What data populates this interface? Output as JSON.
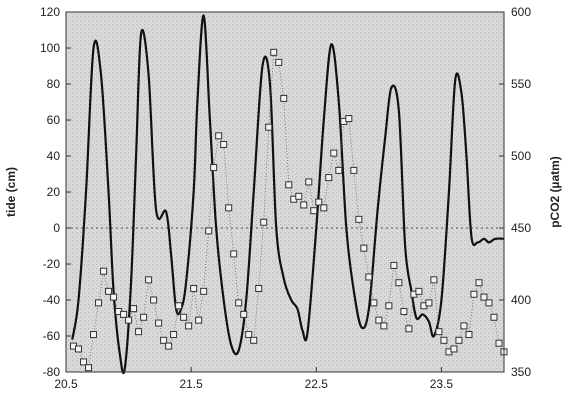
{
  "chart_data": {
    "type": "line",
    "title": "",
    "xlabel": "",
    "ylabel": "tide (cm)",
    "y2label": "pCO2 (µatm)",
    "xlim": [
      20.5,
      24.0
    ],
    "ylim": [
      -80,
      120
    ],
    "y2lim": [
      350,
      600
    ],
    "xticks": [
      20.5,
      21.5,
      22.5,
      23.5
    ],
    "yticks": [
      -80,
      -60,
      -40,
      -20,
      0,
      20,
      40,
      60,
      80,
      100,
      120
    ],
    "y2ticks": [
      350,
      400,
      450,
      500,
      550,
      600
    ],
    "grid": false,
    "zero_line": true,
    "series": [
      {
        "axis": "left",
        "style": "solid-line",
        "x": [
          20.55,
          20.6,
          20.66,
          20.72,
          20.78,
          20.84,
          20.88,
          20.93,
          20.97,
          21.02,
          21.06,
          21.1,
          21.16,
          21.22,
          21.3,
          21.34,
          21.38,
          21.42,
          21.46,
          21.52,
          21.55,
          21.6,
          21.65,
          21.7,
          21.76,
          21.82,
          21.88,
          21.94,
          22.0,
          22.07,
          22.13,
          22.18,
          22.24,
          22.3,
          22.35,
          22.39,
          22.43,
          22.5,
          22.56,
          22.62,
          22.68,
          22.74,
          22.8,
          22.86,
          22.92,
          22.99,
          23.05,
          23.1,
          23.16,
          23.21,
          23.26,
          23.3,
          23.35,
          23.4,
          23.44,
          23.5,
          23.56,
          23.61,
          23.66,
          23.7,
          23.74,
          23.79,
          23.84,
          23.88,
          23.93,
          24.0
        ],
        "values": [
          -62,
          -40,
          20,
          100,
          85,
          20,
          -35,
          -70,
          -78,
          -30,
          40,
          108,
          85,
          10,
          9,
          -15,
          -45,
          -45,
          -30,
          20,
          70,
          118,
          60,
          0,
          -40,
          -65,
          -68,
          -40,
          20,
          90,
          80,
          0,
          -28,
          -40,
          -45,
          -57,
          -58,
          0,
          60,
          102,
          70,
          0,
          -35,
          -55,
          -45,
          10,
          50,
          78,
          65,
          -10,
          -35,
          -50,
          -48,
          -52,
          -60,
          -40,
          20,
          82,
          75,
          40,
          -5,
          -8,
          -6,
          -8,
          -6,
          -6
        ]
      },
      {
        "axis": "right",
        "style": "open-squares-dotted",
        "x": [
          20.56,
          20.6,
          20.64,
          20.68,
          20.72,
          20.76,
          20.8,
          20.84,
          20.88,
          20.92,
          20.96,
          21.0,
          21.04,
          21.08,
          21.12,
          21.16,
          21.2,
          21.24,
          21.28,
          21.32,
          21.36,
          21.4,
          21.44,
          21.48,
          21.52,
          21.56,
          21.6,
          21.64,
          21.68,
          21.72,
          21.76,
          21.8,
          21.84,
          21.88,
          21.92,
          21.96,
          22.0,
          22.04,
          22.08,
          22.12,
          22.16,
          22.2,
          22.24,
          22.28,
          22.32,
          22.36,
          22.4,
          22.44,
          22.48,
          22.52,
          22.56,
          22.6,
          22.64,
          22.68,
          22.72,
          22.76,
          22.8,
          22.84,
          22.88,
          22.92,
          22.96,
          23.0,
          23.04,
          23.08,
          23.12,
          23.16,
          23.2,
          23.24,
          23.28,
          23.32,
          23.36,
          23.4,
          23.44,
          23.48,
          23.52,
          23.56,
          23.6,
          23.64,
          23.68,
          23.72,
          23.76,
          23.8,
          23.84,
          23.88,
          23.92,
          23.96,
          24.0
        ],
        "values": [
          368,
          366,
          357,
          353,
          376,
          398,
          420,
          406,
          402,
          392,
          390,
          386,
          394,
          378,
          388,
          414,
          400,
          384,
          372,
          368,
          376,
          396,
          388,
          382,
          408,
          386,
          406,
          448,
          492,
          514,
          508,
          464,
          432,
          398,
          390,
          376,
          372,
          408,
          454,
          520,
          572,
          565,
          540,
          480,
          470,
          472,
          466,
          482,
          462,
          468,
          464,
          485,
          502,
          490,
          524,
          526,
          490,
          456,
          436,
          416,
          398,
          386,
          382,
          396,
          424,
          412,
          392,
          380,
          404,
          406,
          396,
          398,
          414,
          378,
          372,
          364,
          366,
          372,
          382,
          376,
          404,
          412,
          402,
          398,
          388,
          370,
          364
        ]
      }
    ]
  }
}
